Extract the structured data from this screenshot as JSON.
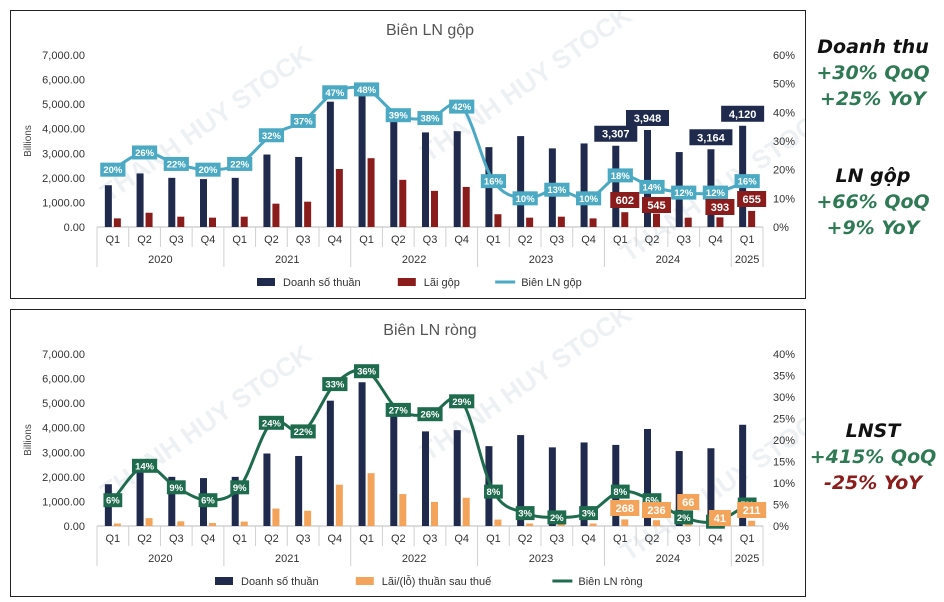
{
  "watermark": "THANH HUY STOCK",
  "quarters": [
    "Q1",
    "Q2",
    "Q3",
    "Q4",
    "Q1",
    "Q2",
    "Q3",
    "Q4",
    "Q1",
    "Q2",
    "Q3",
    "Q4",
    "Q1",
    "Q2",
    "Q3",
    "Q4",
    "Q1",
    "Q2",
    "Q3",
    "Q4",
    "Q1"
  ],
  "years": [
    {
      "label": "2020",
      "span": 4
    },
    {
      "label": "2021",
      "span": 4
    },
    {
      "label": "2022",
      "span": 4
    },
    {
      "label": "2023",
      "span": 4
    },
    {
      "label": "2024",
      "span": 4
    },
    {
      "label": "2025",
      "span": 1
    }
  ],
  "chart_data": [
    {
      "type": "bar",
      "title": "Biên LN gộp",
      "ylabel": "Billions",
      "ylim": [
        0,
        7000
      ],
      "y_ticks": [
        "0.00",
        "1,000.00",
        "2,000.00",
        "3,000.00",
        "4,000.00",
        "5,000.00",
        "6,000.00",
        "7,000.00"
      ],
      "y2lim": [
        0,
        60
      ],
      "y2_ticks": [
        "0%",
        "10%",
        "20%",
        "30%",
        "40%",
        "50%",
        "60%"
      ],
      "legend_position": "bottom",
      "series": [
        {
          "name": "Doanh số thuần",
          "kind": "bar",
          "color": "#1f2a4d",
          "values": [
            1700,
            2180,
            2000,
            1950,
            2000,
            2950,
            2850,
            5100,
            5750,
            4700,
            3850,
            3900,
            3250,
            3700,
            3200,
            3400,
            3307,
            3948,
            3050,
            3164,
            4120
          ],
          "labels": [
            null,
            null,
            null,
            null,
            null,
            null,
            null,
            null,
            null,
            null,
            null,
            null,
            null,
            null,
            null,
            null,
            "3,307",
            "3,948",
            null,
            "3,164",
            "4,120"
          ]
        },
        {
          "name": "Lãi gộp",
          "kind": "bar",
          "color": "#8b1c1c",
          "values": [
            350,
            580,
            420,
            380,
            420,
            950,
            1030,
            2360,
            2800,
            1920,
            1470,
            1630,
            520,
            380,
            420,
            350,
            602,
            545,
            380,
            393,
            655
          ],
          "labels": [
            null,
            null,
            null,
            null,
            null,
            null,
            null,
            null,
            null,
            null,
            null,
            null,
            null,
            null,
            null,
            null,
            "602",
            "545",
            null,
            "393",
            "655"
          ]
        },
        {
          "name": "Biên LN gộp",
          "kind": "line",
          "color": "#4ba9c3",
          "axis": "right",
          "values": [
            20,
            26,
            22,
            20,
            22,
            32,
            37,
            47,
            48,
            39,
            38,
            42,
            16,
            10,
            13,
            10,
            18,
            14,
            12,
            12,
            16
          ],
          "labels": [
            "20%",
            "26%",
            "22%",
            "20%",
            "22%",
            "32%",
            "37%",
            "47%",
            "48%",
            "39%",
            "38%",
            "42%",
            "16%",
            "10%",
            "13%",
            "10%",
            "18%",
            "14%",
            "12%",
            "12%",
            "16%"
          ]
        }
      ]
    },
    {
      "type": "bar",
      "title": "Biên LN ròng",
      "ylabel": "Billions",
      "ylim": [
        0,
        7000
      ],
      "y_ticks": [
        "0.00",
        "1,000.00",
        "2,000.00",
        "3,000.00",
        "4,000.00",
        "5,000.00",
        "6,000.00",
        "7,000.00"
      ],
      "y2lim": [
        0,
        40
      ],
      "y2_ticks": [
        "0%",
        "5%",
        "10%",
        "15%",
        "20%",
        "25%",
        "30%",
        "35%",
        "40%"
      ],
      "legend_position": "bottom",
      "series": [
        {
          "name": "Doanh số thuần",
          "kind": "bar",
          "color": "#1f2a4d",
          "values": [
            1700,
            2180,
            2000,
            1950,
            2000,
            2950,
            2850,
            5100,
            5850,
            4750,
            3850,
            3900,
            3250,
            3700,
            3200,
            3400,
            3300,
            3948,
            3050,
            3164,
            4120
          ],
          "labels": [
            null,
            null,
            null,
            null,
            null,
            null,
            null,
            null,
            null,
            null,
            null,
            null,
            null,
            null,
            null,
            null,
            null,
            null,
            null,
            null,
            null
          ]
        },
        {
          "name": "Lãi/(lỗ) thuần sau thuế",
          "kind": "bar",
          "color": "#f4a35a",
          "values": [
            100,
            320,
            190,
            120,
            180,
            710,
            620,
            1680,
            2150,
            1300,
            980,
            1150,
            260,
            100,
            80,
            100,
            268,
            236,
            66,
            41,
            211
          ],
          "labels": [
            null,
            null,
            null,
            null,
            null,
            null,
            null,
            null,
            null,
            null,
            null,
            null,
            null,
            null,
            null,
            null,
            "268",
            "236",
            "66",
            "41",
            "211"
          ]
        },
        {
          "name": "Biên LN ròng",
          "kind": "line",
          "color": "#1f6b4e",
          "axis": "right",
          "values": [
            6,
            14,
            9,
            6,
            9,
            24,
            22,
            33,
            36,
            27,
            26,
            29,
            8,
            3,
            2,
            3,
            8,
            6,
            2,
            1,
            5
          ],
          "labels": [
            "6%",
            "14%",
            "9%",
            "6%",
            "9%",
            "24%",
            "22%",
            "33%",
            "36%",
            "27%",
            "26%",
            "29%",
            "8%",
            "3%",
            "2%",
            "3%",
            "8%",
            "6%",
            "2%",
            "1%",
            "5%"
          ]
        }
      ]
    }
  ],
  "side": {
    "revenue": {
      "title": "Doanh thu",
      "qoq": "+30% QoQ",
      "yoy": "+25% YoY"
    },
    "gross": {
      "title": "LN gộp",
      "qoq": "+66% QoQ",
      "yoy": "+9% YoY"
    },
    "net": {
      "title": "LNST",
      "qoq": "+415% QoQ",
      "yoy": "-25% YoY"
    }
  }
}
